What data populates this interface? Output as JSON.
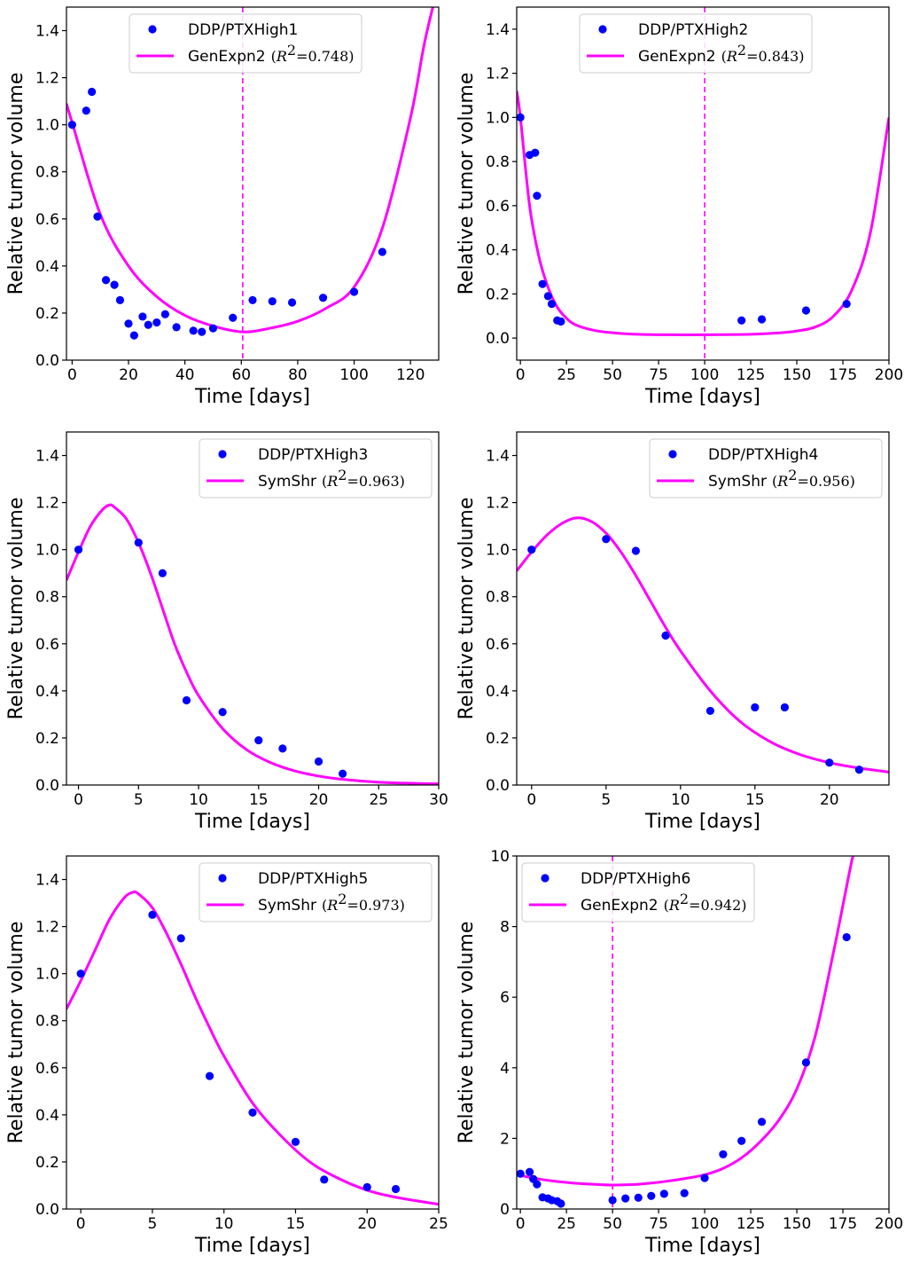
{
  "chart_data": [
    {
      "type": "scatter",
      "title": "",
      "xlabel": "Time [days]",
      "ylabel": "Relative tumor volume",
      "xlim": [
        -2,
        130
      ],
      "ylim": [
        0,
        1.5
      ],
      "xticks": [
        0,
        20,
        40,
        60,
        80,
        100,
        120
      ],
      "yticks": [
        0.0,
        0.2,
        0.4,
        0.6,
        0.8,
        1.0,
        1.2,
        1.4
      ],
      "ytick_labels": [
        "0.0",
        "0.2",
        "0.4",
        "0.6",
        "0.8",
        "1.0",
        "1.2",
        "1.4"
      ],
      "legend_position": "top-center",
      "data_series": {
        "name": "DDP/PTXHigh1",
        "color": "#0000ff",
        "x": [
          0,
          5,
          7,
          9,
          12,
          15,
          17,
          20,
          22,
          25,
          27,
          30,
          33,
          37,
          43,
          46,
          50,
          57,
          64,
          71,
          78,
          89,
          100,
          110
        ],
        "y": [
          1.0,
          1.06,
          1.14,
          0.61,
          0.34,
          0.32,
          0.255,
          0.155,
          0.105,
          0.185,
          0.15,
          0.16,
          0.195,
          0.14,
          0.125,
          0.12,
          0.135,
          0.18,
          0.255,
          0.25,
          0.245,
          0.265,
          0.29,
          0.46
        ]
      },
      "model": {
        "name": "GenExpn2",
        "r2_label": "0.748",
        "color": "#ff00ff",
        "kind": "genexp",
        "vmin": 0.12,
        "tmin": 60.5,
        "x": [
          -2,
          0,
          10,
          20,
          30,
          40,
          50,
          60.5,
          70,
          80,
          90,
          100,
          110,
          120,
          125,
          130
        ],
        "y": [
          1.09,
          1.01,
          0.62,
          0.4,
          0.27,
          0.19,
          0.145,
          0.12,
          0.135,
          0.165,
          0.22,
          0.31,
          0.56,
          1.03,
          1.35,
          1.6
        ]
      },
      "vline": 60.5
    },
    {
      "type": "scatter",
      "title": "",
      "xlabel": "Time [days]",
      "ylabel": "Relative tumor volume",
      "xlim": [
        -2,
        200
      ],
      "ylim": [
        -0.1,
        1.5
      ],
      "xticks": [
        0,
        25,
        50,
        75,
        100,
        125,
        150,
        175,
        200
      ],
      "yticks": [
        0.0,
        0.2,
        0.4,
        0.6,
        0.8,
        1.0,
        1.2,
        1.4
      ],
      "ytick_labels": [
        "0.0",
        "0.2",
        "0.4",
        "0.6",
        "0.8",
        "1.0",
        "1.2",
        "1.4"
      ],
      "legend_position": "top-center",
      "data_series": {
        "name": "DDP/PTXHigh2",
        "color": "#0000ff",
        "x": [
          0,
          5,
          8,
          9,
          12,
          15,
          17,
          20,
          22,
          120,
          131,
          155,
          177
        ],
        "y": [
          1.0,
          0.83,
          0.84,
          0.645,
          0.245,
          0.19,
          0.155,
          0.08,
          0.075,
          0.08,
          0.085,
          0.125,
          0.155
        ]
      },
      "model": {
        "name": "GenExpn2",
        "r2_label": "0.843",
        "color": "#ff00ff",
        "kind": "genexp",
        "vmin": 0.015,
        "tmin": 100,
        "x": [
          -2,
          0,
          5,
          10,
          15,
          20,
          25,
          30,
          40,
          50,
          60,
          75,
          100,
          125,
          140,
          150,
          160,
          170,
          180,
          190,
          200
        ],
        "y": [
          1.12,
          1.0,
          0.6,
          0.37,
          0.23,
          0.14,
          0.09,
          0.06,
          0.035,
          0.024,
          0.018,
          0.015,
          0.015,
          0.017,
          0.023,
          0.032,
          0.05,
          0.1,
          0.22,
          0.48,
          1.0
        ]
      },
      "vline": 100
    },
    {
      "type": "scatter",
      "title": "",
      "xlabel": "Time [days]",
      "ylabel": "Relative tumor volume",
      "xlim": [
        -1,
        30
      ],
      "ylim": [
        0,
        1.5
      ],
      "xticks": [
        0,
        5,
        10,
        15,
        20,
        25,
        30
      ],
      "yticks": [
        0.0,
        0.2,
        0.4,
        0.6,
        0.8,
        1.0,
        1.2,
        1.4
      ],
      "ytick_labels": [
        "0.0",
        "0.2",
        "0.4",
        "0.6",
        "0.8",
        "1.0",
        "1.2",
        "1.4"
      ],
      "legend_position": "top-right",
      "data_series": {
        "name": "DDP/PTXHigh3",
        "color": "#0000ff",
        "x": [
          0,
          5,
          7,
          9,
          12,
          15,
          17,
          20,
          22
        ],
        "y": [
          1.0,
          1.03,
          0.9,
          0.36,
          0.31,
          0.19,
          0.155,
          0.1,
          0.048
        ]
      },
      "model": {
        "name": "SymShr",
        "r2_label": "0.963",
        "color": "#ff00ff",
        "kind": "symshr",
        "peak_t": 2.6,
        "peak_v": 1.19,
        "v0": 0.87,
        "x": [
          -1,
          0,
          1,
          2,
          2.6,
          3,
          4,
          5,
          6,
          7,
          8,
          9,
          10,
          12,
          14,
          16,
          18,
          20,
          22,
          25,
          28,
          30
        ],
        "y": [
          0.87,
          0.99,
          1.1,
          1.17,
          1.19,
          1.18,
          1.13,
          1.03,
          0.9,
          0.75,
          0.6,
          0.48,
          0.38,
          0.24,
          0.15,
          0.095,
          0.06,
          0.038,
          0.024,
          0.012,
          0.007,
          0.005
        ]
      },
      "vline": null
    },
    {
      "type": "scatter",
      "title": "",
      "xlabel": "Time [days]",
      "ylabel": "Relative tumor volume",
      "xlim": [
        -1,
        24
      ],
      "ylim": [
        0,
        1.5
      ],
      "xticks": [
        0,
        5,
        10,
        15,
        20
      ],
      "yticks": [
        0.0,
        0.2,
        0.4,
        0.6,
        0.8,
        1.0,
        1.2,
        1.4
      ],
      "ytick_labels": [
        "0.0",
        "0.2",
        "0.4",
        "0.6",
        "0.8",
        "1.0",
        "1.2",
        "1.4"
      ],
      "legend_position": "top-right",
      "data_series": {
        "name": "DDP/PTXHigh4",
        "color": "#0000ff",
        "x": [
          0,
          5,
          7,
          9,
          12,
          15,
          17,
          20,
          22
        ],
        "y": [
          1.0,
          1.045,
          0.995,
          0.635,
          0.315,
          0.33,
          0.33,
          0.095,
          0.065
        ]
      },
      "model": {
        "name": "SymShr",
        "r2_label": "0.956",
        "color": "#ff00ff",
        "kind": "symshr",
        "peak_t": 3.0,
        "peak_v": 1.135,
        "v0": 0.91,
        "x": [
          -1,
          0,
          1,
          2,
          3,
          4,
          5,
          6,
          7,
          8,
          9,
          10,
          12,
          14,
          16,
          18,
          20,
          22,
          24
        ],
        "y": [
          0.91,
          0.99,
          1.06,
          1.11,
          1.135,
          1.12,
          1.07,
          0.99,
          0.89,
          0.78,
          0.67,
          0.57,
          0.4,
          0.27,
          0.185,
          0.13,
          0.095,
          0.072,
          0.055
        ]
      },
      "vline": null
    },
    {
      "type": "scatter",
      "title": "",
      "xlabel": "Time [days]",
      "ylabel": "Relative tumor volume",
      "xlim": [
        -1,
        25
      ],
      "ylim": [
        0,
        1.5
      ],
      "xticks": [
        0,
        5,
        10,
        15,
        20,
        25
      ],
      "yticks": [
        0.0,
        0.2,
        0.4,
        0.6,
        0.8,
        1.0,
        1.2,
        1.4
      ],
      "ytick_labels": [
        "0.0",
        "0.2",
        "0.4",
        "0.6",
        "0.8",
        "1.0",
        "1.2",
        "1.4"
      ],
      "legend_position": "top-right",
      "data_series": {
        "name": "DDP/PTXHigh5",
        "color": "#0000ff",
        "x": [
          0,
          5,
          7,
          9,
          12,
          15,
          17,
          20,
          22
        ],
        "y": [
          1.0,
          1.25,
          1.15,
          0.565,
          0.41,
          0.285,
          0.125,
          0.093,
          0.085
        ]
      },
      "model": {
        "name": "SymShr",
        "r2_label": "0.973",
        "color": "#ff00ff",
        "kind": "symshr",
        "peak_t": 3.6,
        "peak_v": 1.345,
        "v0": 0.85,
        "x": [
          -1,
          0,
          1,
          2,
          3,
          3.6,
          4,
          5,
          6,
          7,
          8,
          9,
          10,
          12,
          14,
          16,
          18,
          20,
          22,
          25
        ],
        "y": [
          0.85,
          0.97,
          1.1,
          1.23,
          1.32,
          1.345,
          1.34,
          1.28,
          1.17,
          1.04,
          0.9,
          0.77,
          0.65,
          0.45,
          0.31,
          0.2,
          0.13,
          0.08,
          0.05,
          0.02
        ]
      },
      "vline": null
    },
    {
      "type": "scatter",
      "title": "",
      "xlabel": "Time [days]",
      "ylabel": "Relative tumor volume",
      "xlim": [
        -2,
        200
      ],
      "ylim": [
        0,
        10
      ],
      "xticks": [
        0,
        25,
        50,
        75,
        100,
        125,
        150,
        175,
        200
      ],
      "yticks": [
        0,
        2,
        4,
        6,
        8,
        10
      ],
      "ytick_labels": [
        "0",
        "2",
        "4",
        "6",
        "8",
        "10"
      ],
      "legend_position": "top-left",
      "data_series": {
        "name": "DDP/PTXHigh6",
        "color": "#0000ff",
        "x": [
          0,
          5,
          7,
          9,
          12,
          15,
          17,
          20,
          22,
          50,
          57,
          64,
          71,
          78,
          89,
          100,
          110,
          120,
          131,
          155,
          177
        ],
        "y": [
          1.0,
          1.05,
          0.85,
          0.7,
          0.33,
          0.3,
          0.25,
          0.22,
          0.15,
          0.25,
          0.3,
          0.32,
          0.37,
          0.43,
          0.45,
          0.88,
          1.55,
          1.93,
          2.47,
          4.15,
          7.7
        ]
      },
      "model": {
        "name": "GenExpn2",
        "r2_label": "0.942",
        "color": "#ff00ff",
        "kind": "genexp",
        "vmin": 0.68,
        "tmin": 50,
        "x": [
          -2,
          0,
          10,
          20,
          30,
          40,
          50,
          60,
          70,
          80,
          90,
          100,
          110,
          120,
          130,
          140,
          150,
          160,
          170,
          175,
          180,
          182
        ],
        "y": [
          0.98,
          0.95,
          0.85,
          0.78,
          0.73,
          0.7,
          0.68,
          0.69,
          0.73,
          0.79,
          0.87,
          0.97,
          1.15,
          1.45,
          1.9,
          2.5,
          3.4,
          4.9,
          7.3,
          8.6,
          9.9,
          10.2
        ]
      },
      "vline": 50
    }
  ]
}
